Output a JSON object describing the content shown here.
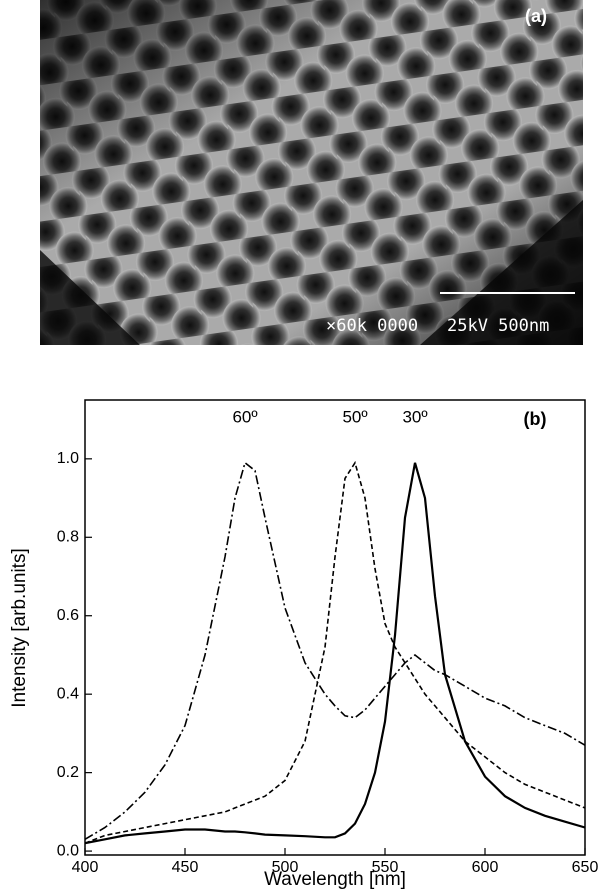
{
  "panel_a": {
    "label": "(a)",
    "scale_left": "×60k 0000",
    "scale_right": "25kV 500nm"
  },
  "chart_data": {
    "type": "line",
    "panel_label": "(b)",
    "xlabel": "Wavelength [nm]",
    "ylabel": "Intensity [arb.units]",
    "x": [
      400,
      410,
      420,
      430,
      440,
      450,
      460,
      470,
      475,
      480,
      485,
      490,
      500,
      510,
      520,
      525,
      530,
      535,
      540,
      545,
      550,
      555,
      560,
      565,
      570,
      575,
      580,
      590,
      600,
      610,
      620,
      630,
      640,
      650
    ],
    "series": [
      {
        "name": "30º",
        "color": "#000000",
        "dash": "solid",
        "values": [
          0.02,
          0.03,
          0.04,
          0.045,
          0.05,
          0.055,
          0.055,
          0.05,
          0.05,
          0.048,
          0.045,
          0.042,
          0.04,
          0.038,
          0.035,
          0.035,
          0.045,
          0.07,
          0.12,
          0.2,
          0.33,
          0.55,
          0.85,
          0.99,
          0.9,
          0.65,
          0.45,
          0.28,
          0.19,
          0.14,
          0.11,
          0.09,
          0.075,
          0.06
        ]
      },
      {
        "name": "50º",
        "color": "#000000",
        "dash": "dashed",
        "values": [
          0.02,
          0.04,
          0.05,
          0.06,
          0.07,
          0.08,
          0.09,
          0.1,
          0.11,
          0.12,
          0.13,
          0.14,
          0.18,
          0.28,
          0.52,
          0.75,
          0.95,
          0.99,
          0.9,
          0.72,
          0.58,
          0.52,
          0.48,
          0.44,
          0.4,
          0.37,
          0.34,
          0.28,
          0.24,
          0.2,
          0.17,
          0.15,
          0.13,
          0.11
        ]
      },
      {
        "name": "60º",
        "color": "#000000",
        "dash": "dashdot",
        "values": [
          0.03,
          0.06,
          0.1,
          0.15,
          0.22,
          0.32,
          0.5,
          0.75,
          0.9,
          0.99,
          0.97,
          0.85,
          0.62,
          0.48,
          0.4,
          0.37,
          0.345,
          0.34,
          0.36,
          0.39,
          0.42,
          0.45,
          0.48,
          0.5,
          0.48,
          0.46,
          0.45,
          0.42,
          0.39,
          0.37,
          0.34,
          0.32,
          0.3,
          0.27
        ]
      }
    ],
    "xlim": [
      400,
      650
    ],
    "xticks": [
      400,
      450,
      500,
      550,
      600,
      650
    ],
    "ylim": [
      -0.01,
      1.15
    ],
    "yticks": [
      {
        "value": 0,
        "label": "0.0"
      },
      0.2,
      0.4,
      0.6,
      0.8,
      {
        "value": 1,
        "label": "1.0"
      }
    ]
  }
}
